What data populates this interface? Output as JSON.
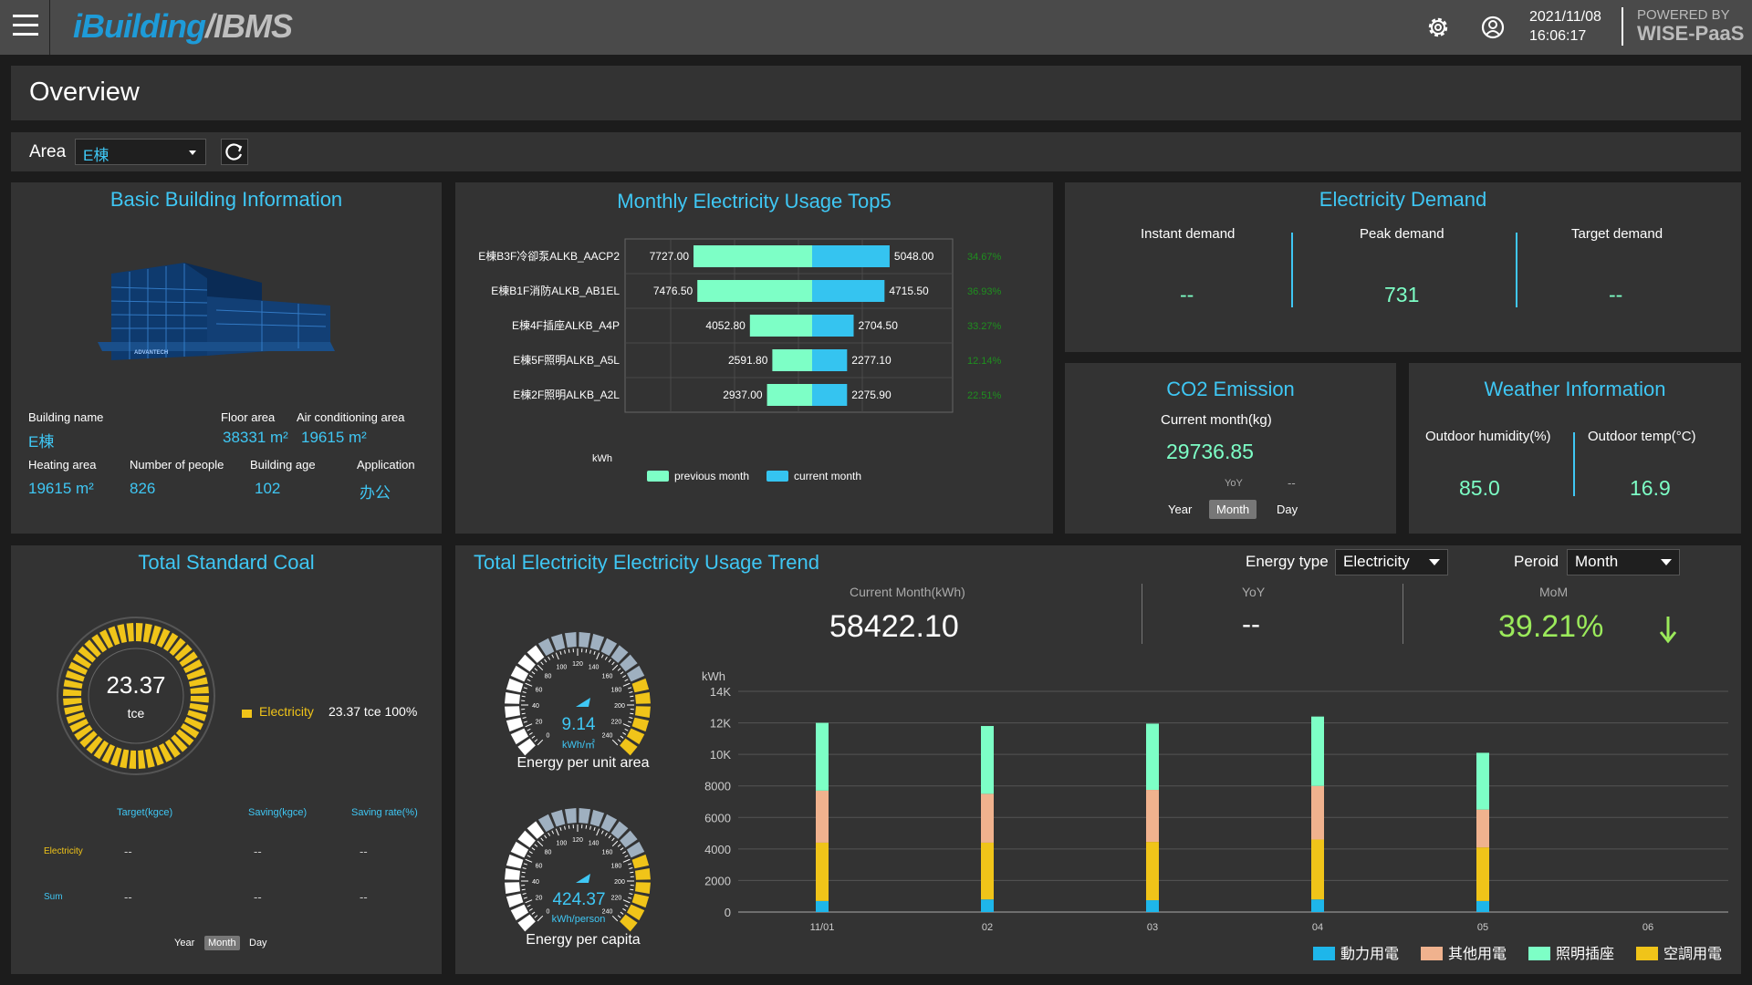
{
  "header": {
    "logo_a": "iBuilding",
    "logo_b": "/IBMS",
    "date": "2021/11/08",
    "time": "16:06:17",
    "powered": "POWERED BY",
    "brand": "WISE-PaaS"
  },
  "page": {
    "title": "Overview"
  },
  "filter": {
    "area_label": "Area",
    "area_value": "E棟"
  },
  "basic": {
    "title": "Basic Building Information",
    "building_name_label": "Building name",
    "building_name": "E棟",
    "floor_area_label": "Floor area",
    "floor_area": "38331 m²",
    "ac_area_label": "Air conditioning area",
    "ac_area": "19615 m²",
    "heating_area_label": "Heating area",
    "heating_area": "19615 m²",
    "people_label": "Number of people",
    "people": "826",
    "age_label": "Building age",
    "age": "102",
    "application_label": "Application",
    "application": "办公",
    "logo_text": "ADVANTECH"
  },
  "top5": {
    "title": "Monthly Electricity Usage Top5",
    "unit": "kWh",
    "legend_prev": "previous month",
    "legend_cur": "current month",
    "colors": {
      "prev": "#7dffc6",
      "cur": "#35c4f0",
      "pct": "#1f8f1f"
    },
    "chart_data": {
      "type": "bar",
      "categories": [
        "E棟B3F冷卻泵ALKB_AACP2",
        "E棟B1F消防ALKB_AB1EL",
        "E棟4F插座ALKB_A4P",
        "E棟5F照明ALKB_A5L",
        "E棟2F照明ALKB_A2L"
      ],
      "series": [
        {
          "name": "previous month",
          "values": [
            7727.0,
            7476.5,
            4052.8,
            2591.8,
            2937.0
          ]
        },
        {
          "name": "current month",
          "values": [
            5048.0,
            4715.5,
            2704.5,
            2277.1,
            2275.9
          ]
        }
      ],
      "prev_labels": [
        "7727.00",
        "7476.50",
        "4052.80",
        "2591.80",
        "2937.00"
      ],
      "cur_labels": [
        "5048.00",
        "4715.50",
        "2704.50",
        "2277.10",
        "2275.90"
      ],
      "percent_labels": [
        "34.67%",
        "36.93%",
        "33.27%",
        "12.14%",
        "22.51%"
      ]
    }
  },
  "demand": {
    "title": "Electricity Demand",
    "instant_label": "Instant demand",
    "instant": "--",
    "peak_label": "Peak demand",
    "peak": "731",
    "target_label": "Target demand",
    "target": "--"
  },
  "co2": {
    "title": "CO2 Emission",
    "current_label": "Current  month(kg)",
    "current": "29736.85",
    "yoy_label": "YoY",
    "yoy": "--",
    "btn_year": "Year",
    "btn_month": "Month",
    "btn_day": "Day"
  },
  "weather": {
    "title": "Weather Information",
    "humidity_label": "Outdoor humidity(%)",
    "humidity": "85.0",
    "temp_label": "Outdoor temp(°C)",
    "temp": "16.9"
  },
  "coal": {
    "title": "Total Standard Coal",
    "total": "23.37",
    "unit": "tce",
    "legend_name": "Electricity",
    "legend_value": "23.37 tce 100%",
    "col_target": "Target(kgce)",
    "col_saving": "Saving(kgce)",
    "col_rate": "Saving rate(%)",
    "rows": [
      {
        "name": "Electricity",
        "target": "--",
        "saving": "--",
        "rate": "--"
      },
      {
        "name": "Sum",
        "target": "--",
        "saving": "--",
        "rate": "--"
      }
    ],
    "btn_year": "Year",
    "btn_month": "Month",
    "btn_day": "Day",
    "gauge_percent": 100,
    "color": "#f0c419"
  },
  "trend": {
    "title": "Total Electricity Electricity Usage Trend",
    "energy_type_label": "Energy type",
    "energy_type": "Electricity",
    "period_label": "Peroid",
    "period": "Month",
    "current_label": "Current Month(kWh)",
    "current": "58422.10",
    "yoy_label": "YoY",
    "yoy": "--",
    "mom_label": "MoM",
    "mom": "39.21%",
    "gauge1": {
      "value": "9.14",
      "unit": "kWh/㎡",
      "label": "Energy per unit area",
      "ticks": [
        "0",
        "20",
        "40",
        "60",
        "80",
        "100",
        "120",
        "140",
        "160",
        "180",
        "200",
        "220",
        "240"
      ]
    },
    "gauge2": {
      "value": "424.37",
      "unit": "kWh/person",
      "label": "Energy per capita",
      "ticks": [
        "0",
        "20",
        "40",
        "60",
        "80",
        "100",
        "120",
        "140",
        "160",
        "180",
        "200",
        "220",
        "240"
      ]
    },
    "chart_data": {
      "type": "bar",
      "stacked": true,
      "ylabel": "kWh",
      "ylim": [
        0,
        14000
      ],
      "yticks": [
        "0",
        "2000",
        "4000",
        "6000",
        "8000",
        "10K",
        "12K",
        "14K"
      ],
      "categories": [
        "11/01",
        "02",
        "03",
        "04",
        "05",
        "06"
      ],
      "series": [
        {
          "name": "動力用電",
          "color": "#1eb6ea",
          "values": [
            700,
            800,
            750,
            800,
            700,
            0
          ]
        },
        {
          "name": "空調用電",
          "color": "#f0c419",
          "values": [
            3700,
            3600,
            3700,
            3800,
            3400,
            0
          ]
        },
        {
          "name": "其他用電",
          "color": "#f0b28e",
          "values": [
            3300,
            3100,
            3300,
            3400,
            2400,
            0
          ]
        },
        {
          "name": "照明插座",
          "color": "#7dffc6",
          "values": [
            4300,
            4300,
            4200,
            4400,
            3600,
            0
          ]
        }
      ],
      "legend_order": [
        "動力用電",
        "其他用電",
        "照明插座",
        "空調用電"
      ]
    }
  }
}
